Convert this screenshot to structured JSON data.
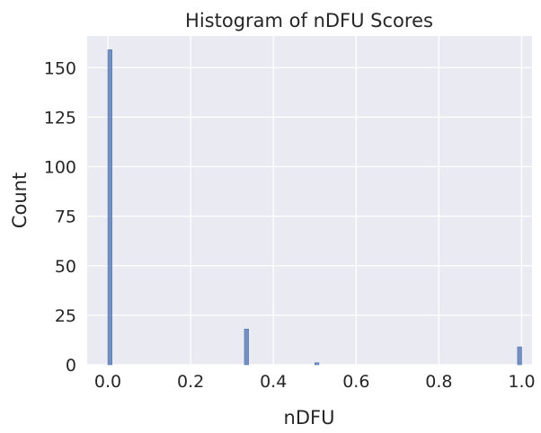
{
  "chart_data": {
    "type": "bar",
    "title": "Histogram of nDFU Scores",
    "xlabel": "nDFU",
    "ylabel": "Count",
    "xlim": [
      -0.05,
      1.025
    ],
    "ylim": [
      0,
      166
    ],
    "xticks": [
      0.0,
      0.2,
      0.4,
      0.6,
      0.8,
      1.0
    ],
    "xtick_labels": [
      "0.0",
      "0.2",
      "0.4",
      "0.6",
      "0.8",
      "1.0"
    ],
    "yticks": [
      0,
      25,
      50,
      75,
      100,
      125,
      150
    ],
    "ytick_labels": [
      "0",
      "25",
      "50",
      "75",
      "100",
      "125",
      "150"
    ],
    "grid": true,
    "background": "#eaeaf2",
    "grid_color": "#ffffff",
    "bar_color": "#4c72b0",
    "bins": [
      {
        "x0": 0.0,
        "x1": 0.01,
        "count": 159
      },
      {
        "x0": 0.33,
        "x1": 0.34,
        "count": 18
      },
      {
        "x0": 0.5,
        "x1": 0.51,
        "count": 1
      },
      {
        "x0": 0.99,
        "x1": 1.0,
        "count": 9
      }
    ]
  }
}
